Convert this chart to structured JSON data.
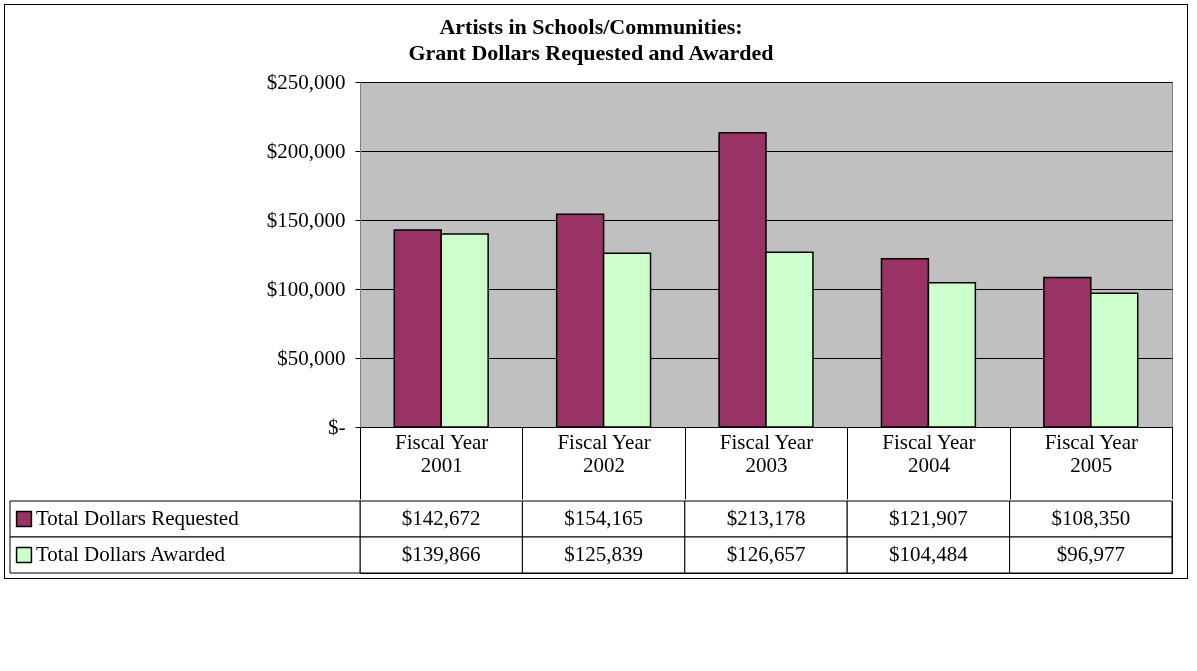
{
  "chart_data": {
    "type": "bar",
    "title": "Artists in Schools/Communities:",
    "subtitle": "Grant Dollars Requested and Awarded",
    "categories": [
      "Fiscal Year 2001",
      "Fiscal Year 2002",
      "Fiscal Year 2003",
      "Fiscal Year 2004",
      "Fiscal Year 2005"
    ],
    "series": [
      {
        "name": "Total Dollars Requested",
        "color": "#993366",
        "values": [
          142672,
          154165,
          213178,
          121907,
          108350
        ],
        "value_labels": [
          "$142,672",
          "$154,165",
          "$213,178",
          "$121,907",
          "$108,350"
        ]
      },
      {
        "name": "Total Dollars Awarded",
        "color": "#ccffcc",
        "values": [
          139866,
          125839,
          126657,
          104484,
          96977
        ],
        "value_labels": [
          "$139,866",
          "$125,839",
          "$126,657",
          "$104,484",
          "$96,977"
        ]
      }
    ],
    "ylim": [
      0,
      250000
    ],
    "yticks": [
      {
        "value": 0,
        "label": "$-"
      },
      {
        "value": 50000,
        "label": "$50,000"
      },
      {
        "value": 100000,
        "label": "$100,000"
      },
      {
        "value": 150000,
        "label": "$150,000"
      },
      {
        "value": 200000,
        "label": "$200,000"
      },
      {
        "value": 250000,
        "label": "$250,000"
      }
    ],
    "grid": "y",
    "legend": "bottom"
  }
}
